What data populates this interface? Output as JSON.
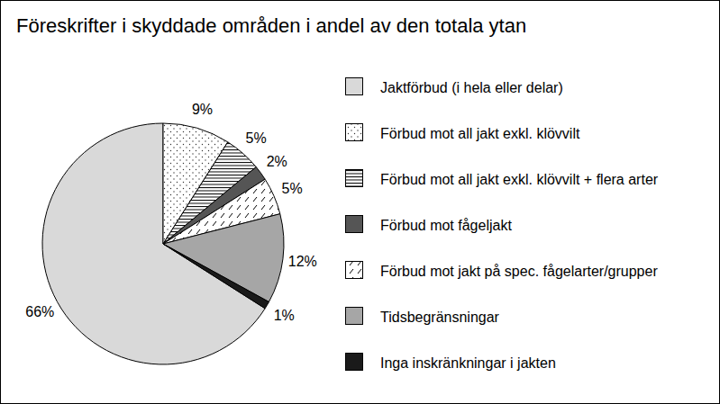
{
  "chart_data": {
    "type": "pie",
    "title": "Föreskrifter i skyddade områden i andel av den totala ytan",
    "categories": [
      "Jaktförbud (i hela eller delar)",
      "Förbud mot all jakt exkl. klövvilt",
      "Förbud mot all jakt exkl. klövvilt + flera arter",
      "Förbud mot fågeljakt",
      "Förbud mot jakt på spec. fågelarter/grupper",
      "Tidsbegränsningar",
      "Inga inskränkningar i jakten"
    ],
    "values": [
      66,
      9,
      5,
      2,
      5,
      12,
      1
    ],
    "value_labels": [
      "66%",
      "9%",
      "5%",
      "2%",
      "5%",
      "12%",
      "1%"
    ],
    "colors": [
      "#d9d9d9",
      "#ffffff",
      "#ffffff",
      "#555555",
      "#ffffff",
      "#a6a6a6",
      "#1a1a1a"
    ],
    "data_labels": true,
    "legend": "right"
  }
}
